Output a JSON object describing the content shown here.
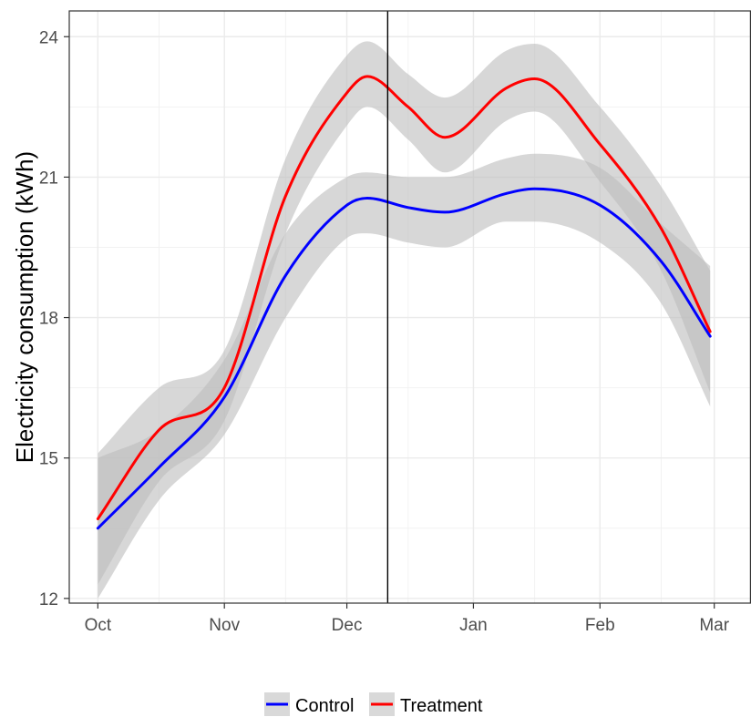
{
  "chart_data": {
    "type": "line",
    "title": "",
    "xlabel": "",
    "ylabel": "Electricity consumption (kWh)",
    "x_ticks": [
      "Oct",
      "Nov",
      "Dec",
      "Jan",
      "Feb",
      "Mar"
    ],
    "x_minor_ticks": [
      "mid-Oct",
      "mid-Nov",
      "mid-Dec",
      "mid-Jan",
      "mid-Feb"
    ],
    "y_ticks": [
      12,
      15,
      18,
      21,
      24
    ],
    "ylim": [
      11.9,
      24.55
    ],
    "xlim": [
      "2017-09-24",
      "2018-03-10"
    ],
    "grid": true,
    "smoothed_with_confidence_band": true,
    "vline": "2017-12-11",
    "legend_position": "bottom",
    "colors": {
      "Control": "#0000ff",
      "Treatment": "#ff0000",
      "band": "#bdbdbd",
      "vline": "#000000"
    },
    "x": [
      "2017-10-01",
      "2017-10-16",
      "2017-11-01",
      "2017-11-16",
      "2017-12-01",
      "2017-12-06",
      "2017-12-16",
      "2017-12-25",
      "2018-01-09",
      "2018-01-16",
      "2018-02-01",
      "2018-02-16",
      "2018-02-28"
    ],
    "series": [
      {
        "name": "Control",
        "values": [
          13.5,
          14.8,
          16.3,
          18.9,
          20.4,
          20.55,
          20.35,
          20.25,
          20.65,
          20.75,
          20.4,
          19.2,
          17.6
        ],
        "lower": [
          12.0,
          14.1,
          15.5,
          18.0,
          19.7,
          19.8,
          19.6,
          19.5,
          20.05,
          20.05,
          19.6,
          18.3,
          16.1
        ],
        "upper": [
          15.0,
          15.6,
          17.1,
          19.8,
          21.0,
          21.1,
          21.0,
          21.0,
          21.4,
          21.5,
          21.2,
          20.0,
          19.1
        ]
      },
      {
        "name": "Treatment",
        "values": [
          13.7,
          15.6,
          16.5,
          20.6,
          22.8,
          23.15,
          22.5,
          21.85,
          22.9,
          23.1,
          21.7,
          19.9,
          17.7
        ],
        "lower": [
          12.3,
          14.5,
          15.8,
          19.8,
          22.1,
          22.5,
          21.8,
          21.1,
          22.2,
          22.4,
          20.9,
          19.0,
          16.4
        ],
        "upper": [
          15.1,
          16.5,
          17.3,
          21.4,
          23.6,
          23.9,
          23.2,
          22.7,
          23.7,
          23.85,
          22.5,
          20.8,
          19.0
        ]
      }
    ]
  }
}
